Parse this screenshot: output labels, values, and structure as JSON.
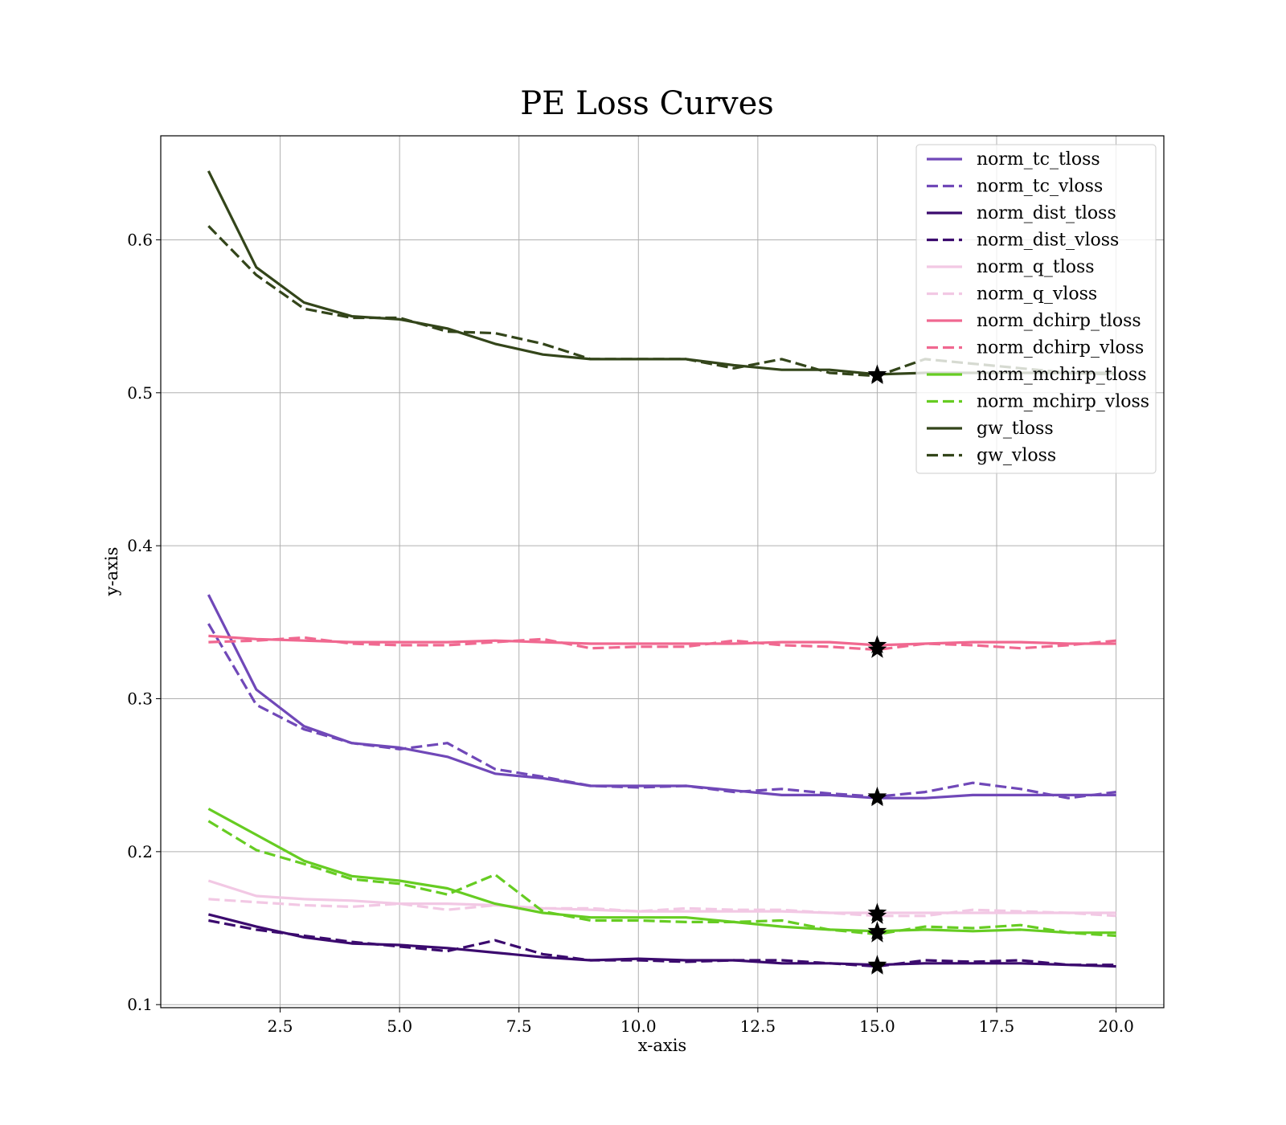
{
  "chart_data": {
    "type": "line",
    "title": "PE Loss Curves",
    "xlabel": "x-axis",
    "ylabel": "y-axis",
    "xlim": [
      0.0,
      21.0
    ],
    "ylim": [
      0.098,
      0.668
    ],
    "xticks": [
      2.5,
      5.0,
      7.5,
      10.0,
      12.5,
      15.0,
      17.5,
      20.0
    ],
    "yticks": [
      0.1,
      0.2,
      0.3,
      0.4,
      0.5,
      0.6
    ],
    "grid": true,
    "legend_position": "top-right",
    "x": [
      1,
      2,
      3,
      4,
      5,
      6,
      7,
      8,
      9,
      10,
      11,
      12,
      13,
      14,
      15,
      16,
      17,
      18,
      19,
      20
    ],
    "best_epoch": 15,
    "series": [
      {
        "name": "norm_tc_tloss",
        "color": "#7048b8",
        "dash": "solid",
        "values": [
          0.368,
          0.306,
          0.282,
          0.271,
          0.268,
          0.262,
          0.251,
          0.248,
          0.243,
          0.243,
          0.243,
          0.24,
          0.237,
          0.237,
          0.235,
          0.235,
          0.237,
          0.237,
          0.237,
          0.237
        ]
      },
      {
        "name": "norm_tc_vloss",
        "color": "#7048b8",
        "dash": "dashed",
        "values": [
          0.349,
          0.296,
          0.28,
          0.271,
          0.267,
          0.271,
          0.254,
          0.249,
          0.243,
          0.242,
          0.243,
          0.239,
          0.241,
          0.238,
          0.236,
          0.239,
          0.245,
          0.241,
          0.235,
          0.239
        ]
      },
      {
        "name": "norm_dist_tloss",
        "color": "#3b0a6e",
        "dash": "solid",
        "values": [
          0.159,
          0.151,
          0.144,
          0.14,
          0.139,
          0.137,
          0.134,
          0.131,
          0.129,
          0.13,
          0.129,
          0.129,
          0.127,
          0.127,
          0.126,
          0.127,
          0.127,
          0.127,
          0.126,
          0.125
        ]
      },
      {
        "name": "norm_dist_vloss",
        "color": "#3b0a6e",
        "dash": "dashed",
        "values": [
          0.155,
          0.149,
          0.145,
          0.141,
          0.138,
          0.135,
          0.142,
          0.133,
          0.129,
          0.129,
          0.128,
          0.129,
          0.129,
          0.127,
          0.125,
          0.129,
          0.128,
          0.129,
          0.126,
          0.126
        ]
      },
      {
        "name": "norm_q_tloss",
        "color": "#f2c8e4",
        "dash": "solid",
        "values": [
          0.181,
          0.171,
          0.169,
          0.168,
          0.166,
          0.166,
          0.165,
          0.163,
          0.162,
          0.161,
          0.161,
          0.161,
          0.161,
          0.16,
          0.16,
          0.16,
          0.16,
          0.16,
          0.16,
          0.16
        ]
      },
      {
        "name": "norm_q_vloss",
        "color": "#f2c8e4",
        "dash": "dashed",
        "values": [
          0.169,
          0.167,
          0.165,
          0.164,
          0.166,
          0.162,
          0.165,
          0.163,
          0.163,
          0.161,
          0.163,
          0.162,
          0.162,
          0.16,
          0.158,
          0.158,
          0.162,
          0.161,
          0.16,
          0.158
        ]
      },
      {
        "name": "norm_dchirp_tloss",
        "color": "#f06890",
        "dash": "solid",
        "values": [
          0.341,
          0.339,
          0.338,
          0.337,
          0.337,
          0.337,
          0.338,
          0.337,
          0.336,
          0.336,
          0.336,
          0.336,
          0.337,
          0.337,
          0.335,
          0.336,
          0.337,
          0.337,
          0.336,
          0.336
        ]
      },
      {
        "name": "norm_dchirp_vloss",
        "color": "#f06890",
        "dash": "dashed",
        "values": [
          0.337,
          0.338,
          0.34,
          0.336,
          0.335,
          0.335,
          0.337,
          0.339,
          0.333,
          0.334,
          0.334,
          0.338,
          0.335,
          0.334,
          0.332,
          0.336,
          0.335,
          0.333,
          0.335,
          0.338
        ]
      },
      {
        "name": "norm_mchirp_tloss",
        "color": "#66cc22",
        "dash": "solid",
        "values": [
          0.228,
          0.211,
          0.194,
          0.184,
          0.181,
          0.176,
          0.166,
          0.16,
          0.157,
          0.157,
          0.157,
          0.154,
          0.151,
          0.149,
          0.148,
          0.149,
          0.148,
          0.149,
          0.147,
          0.147
        ]
      },
      {
        "name": "norm_mchirp_vloss",
        "color": "#66cc22",
        "dash": "dashed",
        "values": [
          0.22,
          0.201,
          0.192,
          0.182,
          0.179,
          0.172,
          0.185,
          0.161,
          0.155,
          0.155,
          0.154,
          0.154,
          0.155,
          0.149,
          0.146,
          0.151,
          0.15,
          0.152,
          0.147,
          0.145
        ]
      },
      {
        "name": "gw_tloss",
        "color": "#33451a",
        "dash": "solid",
        "values": [
          0.645,
          0.582,
          0.559,
          0.55,
          0.548,
          0.542,
          0.532,
          0.525,
          0.522,
          0.522,
          0.522,
          0.518,
          0.515,
          0.515,
          0.512,
          0.513,
          0.513,
          0.513,
          0.513,
          0.513
        ]
      },
      {
        "name": "gw_vloss",
        "color": "#33451a",
        "dash": "dashed",
        "values": [
          0.609,
          0.577,
          0.555,
          0.549,
          0.549,
          0.54,
          0.539,
          0.532,
          0.522,
          0.522,
          0.522,
          0.516,
          0.522,
          0.513,
          0.511,
          0.522,
          0.519,
          0.516,
          0.513,
          0.512
        ]
      }
    ]
  }
}
